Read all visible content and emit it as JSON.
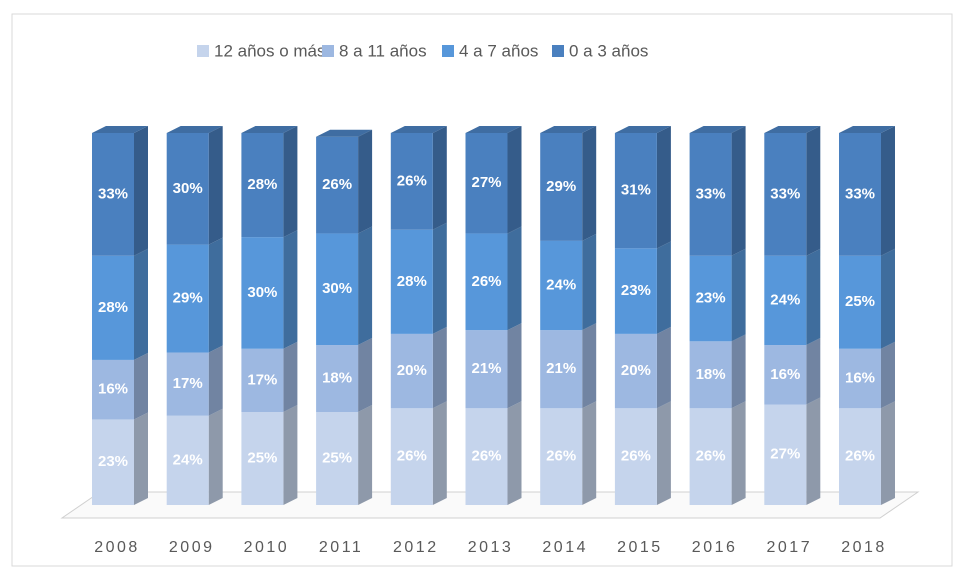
{
  "chart_data": {
    "type": "stacked_bar_3d",
    "categories": [
      "2008",
      "2009",
      "2010",
      "2011",
      "2012",
      "2013",
      "2014",
      "2015",
      "2016",
      "2017",
      "2018"
    ],
    "series": [
      {
        "name": "12 años o más",
        "color": "#c5d4ec",
        "values": [
          23,
          24,
          25,
          25,
          26,
          26,
          26,
          26,
          26,
          27,
          26
        ],
        "value_labels": [
          "23%",
          "24%",
          "25%",
          "25%",
          "26%",
          "26%",
          "26%",
          "26%",
          "26%",
          "27%",
          "26%"
        ]
      },
      {
        "name": "8 a 11 años",
        "color": "#9db8e1",
        "values": [
          16,
          17,
          17,
          18,
          20,
          21,
          21,
          20,
          18,
          16,
          16
        ],
        "value_labels": [
          "16%",
          "17%",
          "17%",
          "18%",
          "20%",
          "21%",
          "21%",
          "20%",
          "18%",
          "16%",
          "16%"
        ]
      },
      {
        "name": "4 a 7 años",
        "color": "#5797da",
        "values": [
          28,
          29,
          30,
          30,
          28,
          26,
          24,
          23,
          23,
          24,
          25
        ],
        "value_labels": [
          "28%",
          "29%",
          "30%",
          "30%",
          "28%",
          "26%",
          "24%",
          "23%",
          "23%",
          "24%",
          "25%"
        ]
      },
      {
        "name": "0 a 3 años",
        "color": "#4a80bf",
        "values": [
          33,
          30,
          28,
          26,
          26,
          27,
          29,
          31,
          33,
          33,
          33
        ],
        "value_labels": [
          "33%",
          "30%",
          "28%",
          "26%",
          "26%",
          "27%",
          "29%",
          "31%",
          "33%",
          "33%",
          "33%"
        ]
      }
    ],
    "legend": "top"
  }
}
